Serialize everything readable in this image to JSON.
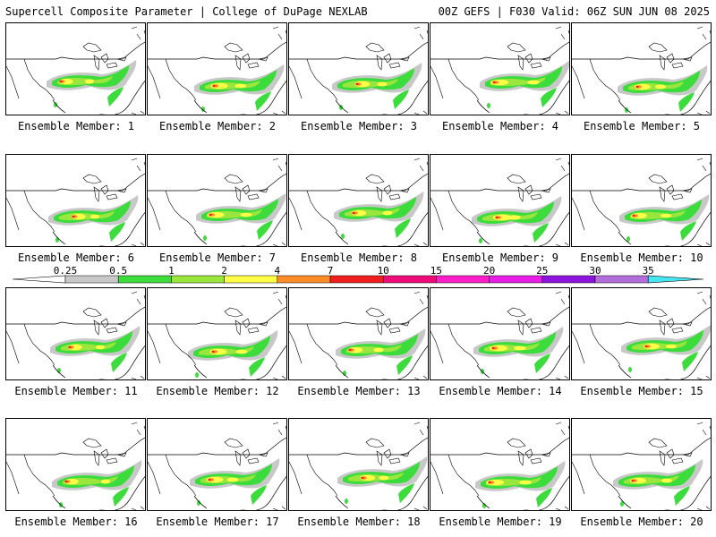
{
  "header": {
    "title": "Supercell Composite Parameter | College of DuPage NEXLAB",
    "valid": "00Z GEFS | F030 Valid: 06Z SUN JUN 08 2025"
  },
  "colorbar": {
    "labels": [
      "0.25",
      "0.5",
      "1",
      "2",
      "4",
      "7",
      "10",
      "15",
      "20",
      "25",
      "30",
      "35"
    ],
    "colors": [
      "#c8c8c8",
      "#3cdc3c",
      "#9be63c",
      "#ffff46",
      "#ff8c28",
      "#f01e1e",
      "#f00a78",
      "#ff1ec8",
      "#e61ee6",
      "#8c14dc",
      "#b46edc",
      "#46e6f0"
    ]
  },
  "members": [
    "Ensemble Member: 1",
    "Ensemble Member: 2",
    "Ensemble Member: 3",
    "Ensemble Member: 4",
    "Ensemble Member: 5",
    "Ensemble Member: 6",
    "Ensemble Member: 7",
    "Ensemble Member: 8",
    "Ensemble Member: 9",
    "Ensemble Member: 10",
    "Ensemble Member: 11",
    "Ensemble Member: 12",
    "Ensemble Member: 13",
    "Ensemble Member: 14",
    "Ensemble Member: 15",
    "Ensemble Member: 16",
    "Ensemble Member: 17",
    "Ensemble Member: 18",
    "Ensemble Member: 19",
    "Ensemble Member: 20"
  ]
}
